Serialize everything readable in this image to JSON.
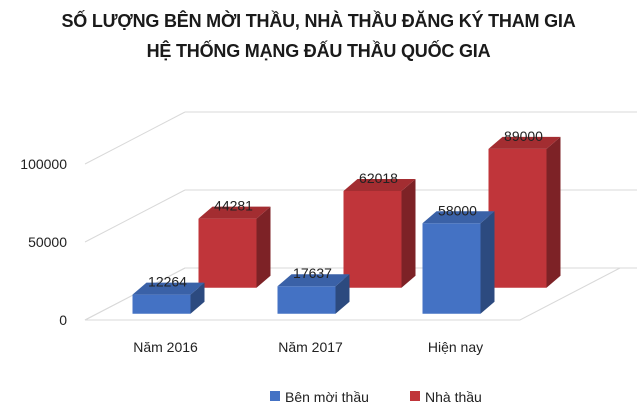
{
  "chart_data": {
    "type": "bar",
    "title_lines": [
      "SỐ LƯỢNG BÊN MỜI THẦU, NHÀ THẦU ĐĂNG KÝ THAM GIA",
      "HỆ THỐNG MẠNG ĐẤU THẦU QUỐC GIA"
    ],
    "categories": [
      "Năm 2016",
      "Năm 2017",
      "Hiện nay"
    ],
    "series": [
      {
        "name": "Bên mời thầu",
        "values": [
          12264,
          17637,
          58000
        ],
        "color": "#4472C4"
      },
      {
        "name": "Nhà thầu",
        "values": [
          44281,
          62018,
          89000
        ],
        "color": "#C0353A"
      }
    ],
    "y_ticks": [
      0,
      50000,
      100000
    ],
    "ylim": [
      0,
      100000
    ],
    "grid": true,
    "projection": "3d-clustered",
    "legend_position": "bottom",
    "data_labels": true
  }
}
